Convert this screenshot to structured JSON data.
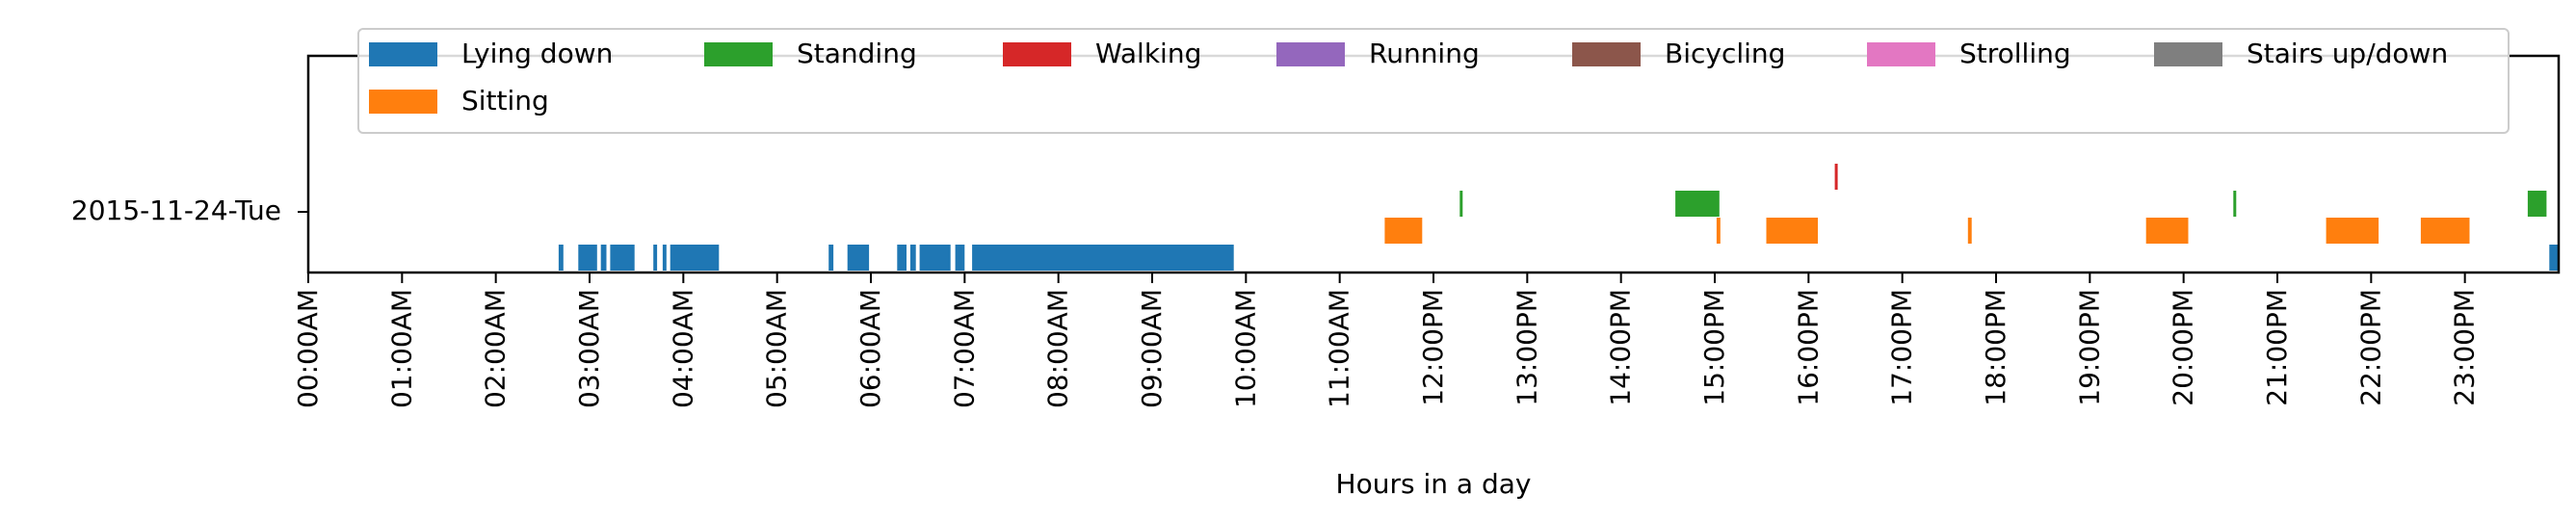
{
  "chart_data": {
    "type": "timeline",
    "title": "",
    "xlabel": "Hours in a day",
    "ylabel": "",
    "xlim": [
      0,
      24
    ],
    "y_category": "2015-11-24-Tue",
    "x_ticks": [
      {
        "hour": 0,
        "label": "00:00AM"
      },
      {
        "hour": 1,
        "label": "01:00AM"
      },
      {
        "hour": 2,
        "label": "02:00AM"
      },
      {
        "hour": 3,
        "label": "03:00AM"
      },
      {
        "hour": 4,
        "label": "04:00AM"
      },
      {
        "hour": 5,
        "label": "05:00AM"
      },
      {
        "hour": 6,
        "label": "06:00AM"
      },
      {
        "hour": 7,
        "label": "07:00AM"
      },
      {
        "hour": 8,
        "label": "08:00AM"
      },
      {
        "hour": 9,
        "label": "09:00AM"
      },
      {
        "hour": 10,
        "label": "10:00AM"
      },
      {
        "hour": 11,
        "label": "11:00AM"
      },
      {
        "hour": 12,
        "label": "12:00PM"
      },
      {
        "hour": 13,
        "label": "13:00PM"
      },
      {
        "hour": 14,
        "label": "14:00PM"
      },
      {
        "hour": 15,
        "label": "15:00PM"
      },
      {
        "hour": 16,
        "label": "16:00PM"
      },
      {
        "hour": 17,
        "label": "17:00PM"
      },
      {
        "hour": 18,
        "label": "18:00PM"
      },
      {
        "hour": 19,
        "label": "19:00PM"
      },
      {
        "hour": 20,
        "label": "20:00PM"
      },
      {
        "hour": 21,
        "label": "21:00PM"
      },
      {
        "hour": 22,
        "label": "22:00PM"
      },
      {
        "hour": 23,
        "label": "23:00PM"
      }
    ],
    "legend_position": "top",
    "series": [
      {
        "name": "Lying down",
        "color": "#1f77b4",
        "level": 0,
        "intervals": [
          [
            2.67,
            2.72
          ],
          [
            2.88,
            3.08
          ],
          [
            3.12,
            3.18
          ],
          [
            3.22,
            3.48
          ],
          [
            3.68,
            3.72
          ],
          [
            3.78,
            3.82
          ],
          [
            3.86,
            4.38
          ],
          [
            5.55,
            5.6
          ],
          [
            5.75,
            5.98
          ],
          [
            6.28,
            6.38
          ],
          [
            6.42,
            6.48
          ],
          [
            6.52,
            6.85
          ],
          [
            6.9,
            7.0
          ],
          [
            7.08,
            9.87
          ],
          [
            23.9,
            24.0
          ]
        ]
      },
      {
        "name": "Sitting",
        "color": "#ff7f0e",
        "level": 1,
        "intervals": [
          [
            11.48,
            11.88
          ],
          [
            15.02,
            15.06
          ],
          [
            15.55,
            16.1
          ],
          [
            17.7,
            17.74
          ],
          [
            19.6,
            20.05
          ],
          [
            21.52,
            22.08
          ],
          [
            22.53,
            23.05
          ]
        ]
      },
      {
        "name": "Standing",
        "color": "#2ca02c",
        "level": 2,
        "intervals": [
          [
            12.28,
            12.31
          ],
          [
            14.58,
            15.05
          ],
          [
            20.53,
            20.56
          ],
          [
            23.67,
            23.87
          ]
        ]
      },
      {
        "name": "Walking",
        "color": "#d62728",
        "level": 3,
        "intervals": [
          [
            16.28,
            16.31
          ]
        ]
      },
      {
        "name": "Running",
        "color": "#9467bd",
        "level": 4,
        "intervals": []
      },
      {
        "name": "Bicycling",
        "color": "#8c564b",
        "level": 5,
        "intervals": []
      },
      {
        "name": "Strolling",
        "color": "#e377c2",
        "level": 6,
        "intervals": []
      },
      {
        "name": "Stairs up/down",
        "color": "#7f7f7f",
        "level": 7,
        "intervals": []
      }
    ]
  }
}
